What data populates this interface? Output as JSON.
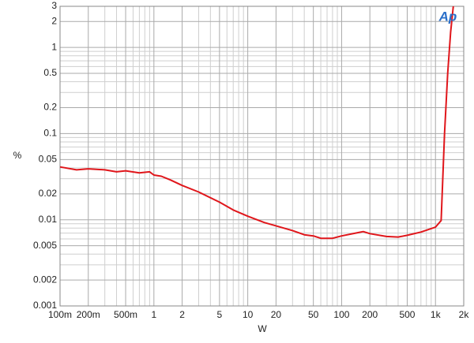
{
  "chart_data": {
    "type": "line",
    "logo": "Ap",
    "xlabel": "W",
    "ylabel": "%",
    "xscale": "log",
    "yscale": "log",
    "grid": true,
    "xlim": [
      0.1,
      2000
    ],
    "ylim": [
      0.001,
      3
    ],
    "xticks": [
      {
        "value": 0.1,
        "label": "100m"
      },
      {
        "value": 0.2,
        "label": "200m"
      },
      {
        "value": 0.5,
        "label": "500m"
      },
      1,
      2,
      5,
      10,
      20,
      50,
      100,
      200,
      500,
      {
        "value": 1000,
        "label": "1k"
      },
      {
        "value": 2000,
        "label": "2k"
      }
    ],
    "xminorticks": [
      0.3,
      0.4,
      0.6,
      0.7,
      0.8,
      0.9,
      3,
      4,
      6,
      7,
      8,
      9,
      30,
      40,
      60,
      70,
      80,
      90,
      300,
      400,
      600,
      700,
      800,
      900
    ],
    "yticks": [
      0.001,
      0.002,
      0.005,
      0.01,
      0.02,
      0.05,
      0.1,
      0.2,
      0.5,
      1,
      2,
      3
    ],
    "yminorticks": [
      0.003,
      0.004,
      0.006,
      0.007,
      0.008,
      0.009,
      0.03,
      0.04,
      0.06,
      0.07,
      0.08,
      0.09,
      0.3,
      0.4,
      0.6,
      0.7,
      0.8,
      0.9
    ],
    "series": [
      {
        "color": "#e0161b",
        "x": [
          0.1,
          0.15,
          0.2,
          0.3,
          0.4,
          0.5,
          0.7,
          0.9,
          1,
          1.2,
          1.5,
          2,
          3,
          5,
          7,
          10,
          15,
          20,
          30,
          40,
          50,
          60,
          80,
          100,
          150,
          170,
          200,
          300,
          400,
          500,
          700,
          1000,
          1150,
          1250,
          1350,
          1450,
          1550
        ],
        "values": [
          0.041,
          0.038,
          0.039,
          0.038,
          0.036,
          0.037,
          0.035,
          0.036,
          0.033,
          0.032,
          0.029,
          0.025,
          0.021,
          0.016,
          0.013,
          0.011,
          0.0093,
          0.0085,
          0.0075,
          0.0067,
          0.0065,
          0.0061,
          0.0061,
          0.0065,
          0.0071,
          0.0073,
          0.0069,
          0.0064,
          0.0063,
          0.0066,
          0.0072,
          0.0082,
          0.0098,
          0.1,
          0.5,
          1.5,
          3
        ]
      }
    ]
  }
}
